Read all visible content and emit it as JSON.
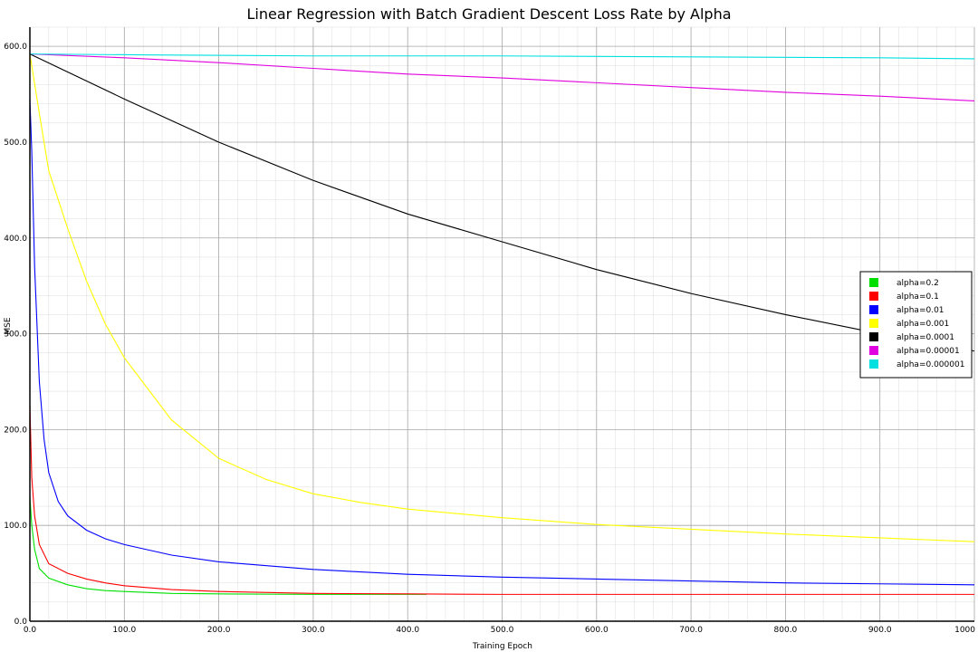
{
  "chart_data": {
    "type": "line",
    "title": "Linear Regression with Batch Gradient Descent Loss Rate by Alpha",
    "xlabel": "Training Epoch",
    "ylabel": "MSE",
    "xlim": [
      0,
      1000
    ],
    "ylim": [
      0,
      620
    ],
    "x_ticks": [
      "0.0",
      "100.0",
      "200.0",
      "300.0",
      "400.0",
      "500.0",
      "600.0",
      "700.0",
      "800.0",
      "900.0",
      "1000"
    ],
    "y_ticks": [
      "0.0",
      "100.0",
      "200.0",
      "300.0",
      "400.0",
      "500.0",
      "600.0"
    ],
    "grid": true,
    "legend_position": "right",
    "series": [
      {
        "name": "alpha=0.2",
        "color": "#00e000",
        "points": [
          [
            0,
            130
          ],
          [
            2,
            100
          ],
          [
            5,
            75
          ],
          [
            10,
            55
          ],
          [
            20,
            45
          ],
          [
            40,
            38
          ],
          [
            60,
            34
          ],
          [
            80,
            32
          ],
          [
            100,
            31
          ],
          [
            150,
            29
          ],
          [
            200,
            28.5
          ],
          [
            300,
            28
          ],
          [
            420,
            28
          ]
        ]
      },
      {
        "name": "alpha=0.1",
        "color": "#ff0000",
        "points": [
          [
            0,
            225
          ],
          [
            2,
            150
          ],
          [
            5,
            110
          ],
          [
            10,
            80
          ],
          [
            20,
            60
          ],
          [
            40,
            50
          ],
          [
            60,
            44
          ],
          [
            80,
            40
          ],
          [
            100,
            37
          ],
          [
            150,
            33
          ],
          [
            200,
            31
          ],
          [
            300,
            29
          ],
          [
            400,
            28.5
          ],
          [
            500,
            28
          ],
          [
            700,
            28
          ],
          [
            1000,
            28
          ]
        ]
      },
      {
        "name": "alpha=0.01",
        "color": "#0000ff",
        "points": [
          [
            0,
            545
          ],
          [
            2,
            490
          ],
          [
            5,
            370
          ],
          [
            10,
            250
          ],
          [
            15,
            190
          ],
          [
            20,
            155
          ],
          [
            30,
            125
          ],
          [
            40,
            110
          ],
          [
            60,
            95
          ],
          [
            80,
            86
          ],
          [
            100,
            80
          ],
          [
            150,
            69
          ],
          [
            200,
            62
          ],
          [
            300,
            54
          ],
          [
            400,
            49
          ],
          [
            500,
            46
          ],
          [
            600,
            44
          ],
          [
            700,
            42
          ],
          [
            800,
            40
          ],
          [
            900,
            39
          ],
          [
            1000,
            38
          ]
        ]
      },
      {
        "name": "alpha=0.001",
        "color": "#ffff00",
        "points": [
          [
            0,
            592
          ],
          [
            10,
            530
          ],
          [
            20,
            470
          ],
          [
            40,
            410
          ],
          [
            60,
            355
          ],
          [
            80,
            310
          ],
          [
            100,
            275
          ],
          [
            150,
            210
          ],
          [
            200,
            170
          ],
          [
            250,
            148
          ],
          [
            300,
            133
          ],
          [
            350,
            124
          ],
          [
            400,
            117
          ],
          [
            500,
            108
          ],
          [
            600,
            101
          ],
          [
            700,
            96
          ],
          [
            800,
            91
          ],
          [
            900,
            87
          ],
          [
            1000,
            83
          ]
        ]
      },
      {
        "name": "alpha=0.0001",
        "color": "#000000",
        "points": [
          [
            0,
            592
          ],
          [
            100,
            545
          ],
          [
            200,
            500
          ],
          [
            300,
            460
          ],
          [
            400,
            425
          ],
          [
            500,
            396
          ],
          [
            600,
            367
          ],
          [
            700,
            342
          ],
          [
            800,
            320
          ],
          [
            900,
            300
          ],
          [
            1000,
            282
          ]
        ]
      },
      {
        "name": "alpha=0.00001",
        "color": "#e000e0",
        "points": [
          [
            0,
            592
          ],
          [
            100,
            588
          ],
          [
            200,
            583
          ],
          [
            300,
            577
          ],
          [
            400,
            571
          ],
          [
            500,
            567
          ],
          [
            600,
            562
          ],
          [
            700,
            557
          ],
          [
            800,
            552
          ],
          [
            900,
            548
          ],
          [
            1000,
            543
          ]
        ]
      },
      {
        "name": "alpha=0.000001",
        "color": "#00e0e0",
        "points": [
          [
            0,
            592
          ],
          [
            130,
            591
          ],
          [
            300,
            590
          ],
          [
            500,
            590
          ],
          [
            700,
            589
          ],
          [
            900,
            588
          ],
          [
            1000,
            587
          ]
        ]
      }
    ]
  }
}
